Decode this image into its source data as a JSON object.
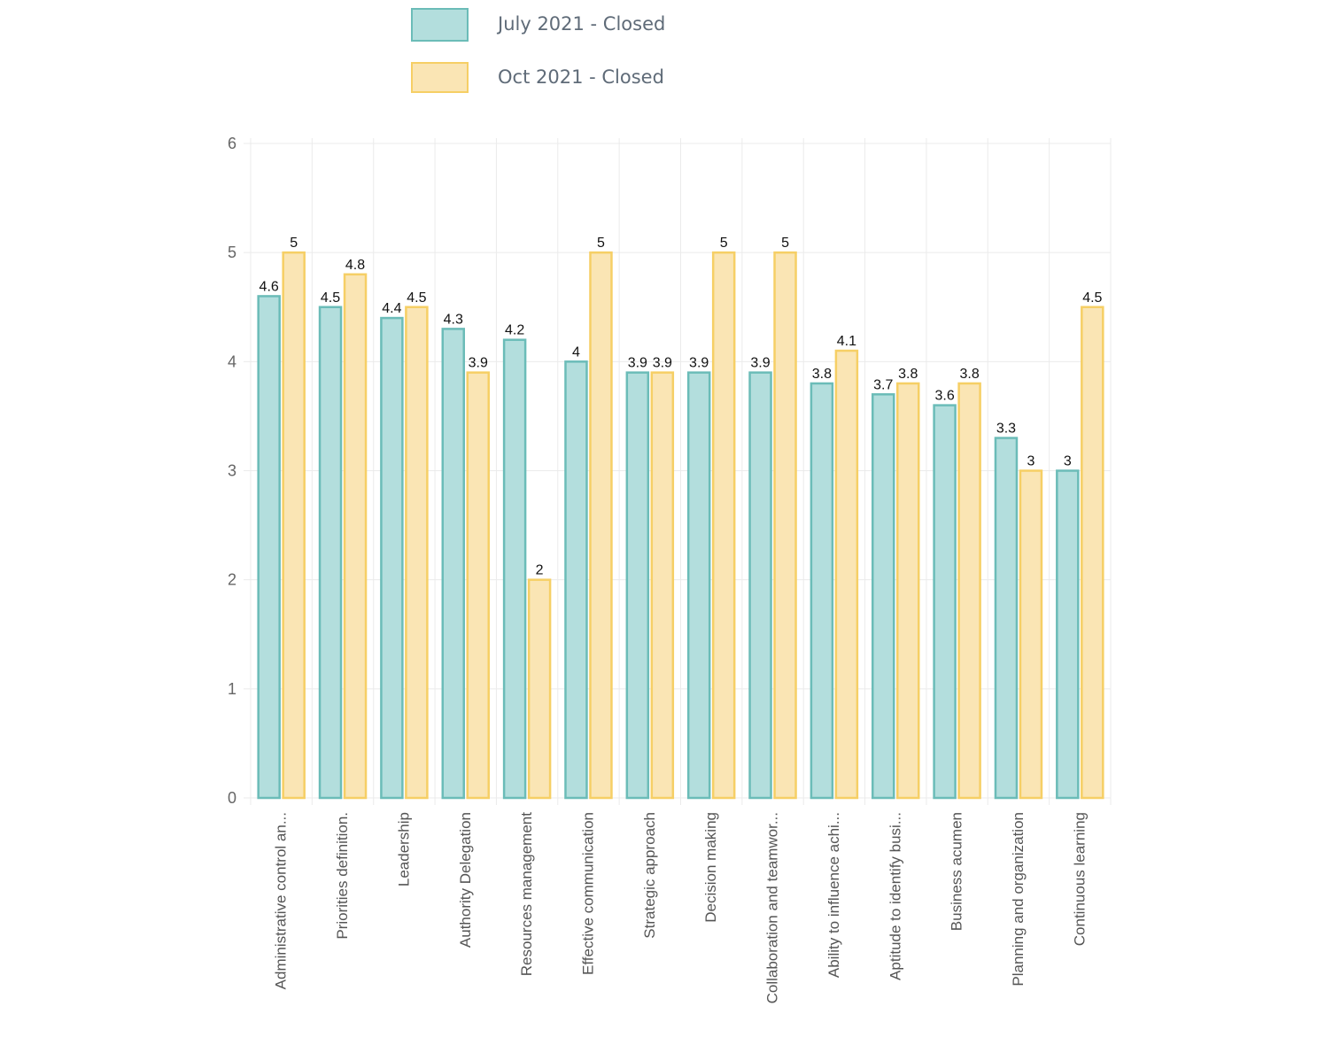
{
  "chart_data": {
    "type": "bar",
    "title": "",
    "xlabel": "",
    "ylabel": "",
    "ylim": [
      0,
      6
    ],
    "yticks": [
      0,
      1,
      2,
      3,
      4,
      5,
      6
    ],
    "grid": true,
    "legend_position": "top",
    "categories": [
      "Administrative control an...",
      "Priorities definition.",
      "Leadership",
      "Authority Delegation",
      "Resources management",
      "Effective communication",
      "Strategic approach",
      "Decision making",
      "Collaboration and teamwor...",
      "Ability to influence achi...",
      "Aptitude to identify busi...",
      "Business acumen",
      "Planning and organization",
      "Continuous learning"
    ],
    "series": [
      {
        "name": "July 2021 - Closed",
        "fill": "#b3dedd",
        "stroke": "#6bbcb8",
        "values": [
          4.6,
          4.5,
          4.4,
          4.3,
          4.2,
          4,
          3.9,
          3.9,
          3.9,
          3.8,
          3.7,
          3.6,
          3.3,
          3
        ]
      },
      {
        "name": "Oct 2021 - Closed",
        "fill": "#fae5b4",
        "stroke": "#f6cf65",
        "values": [
          5,
          4.8,
          4.5,
          3.9,
          2,
          5,
          3.9,
          5,
          5,
          4.1,
          3.8,
          3.8,
          3,
          4.5
        ]
      }
    ]
  }
}
